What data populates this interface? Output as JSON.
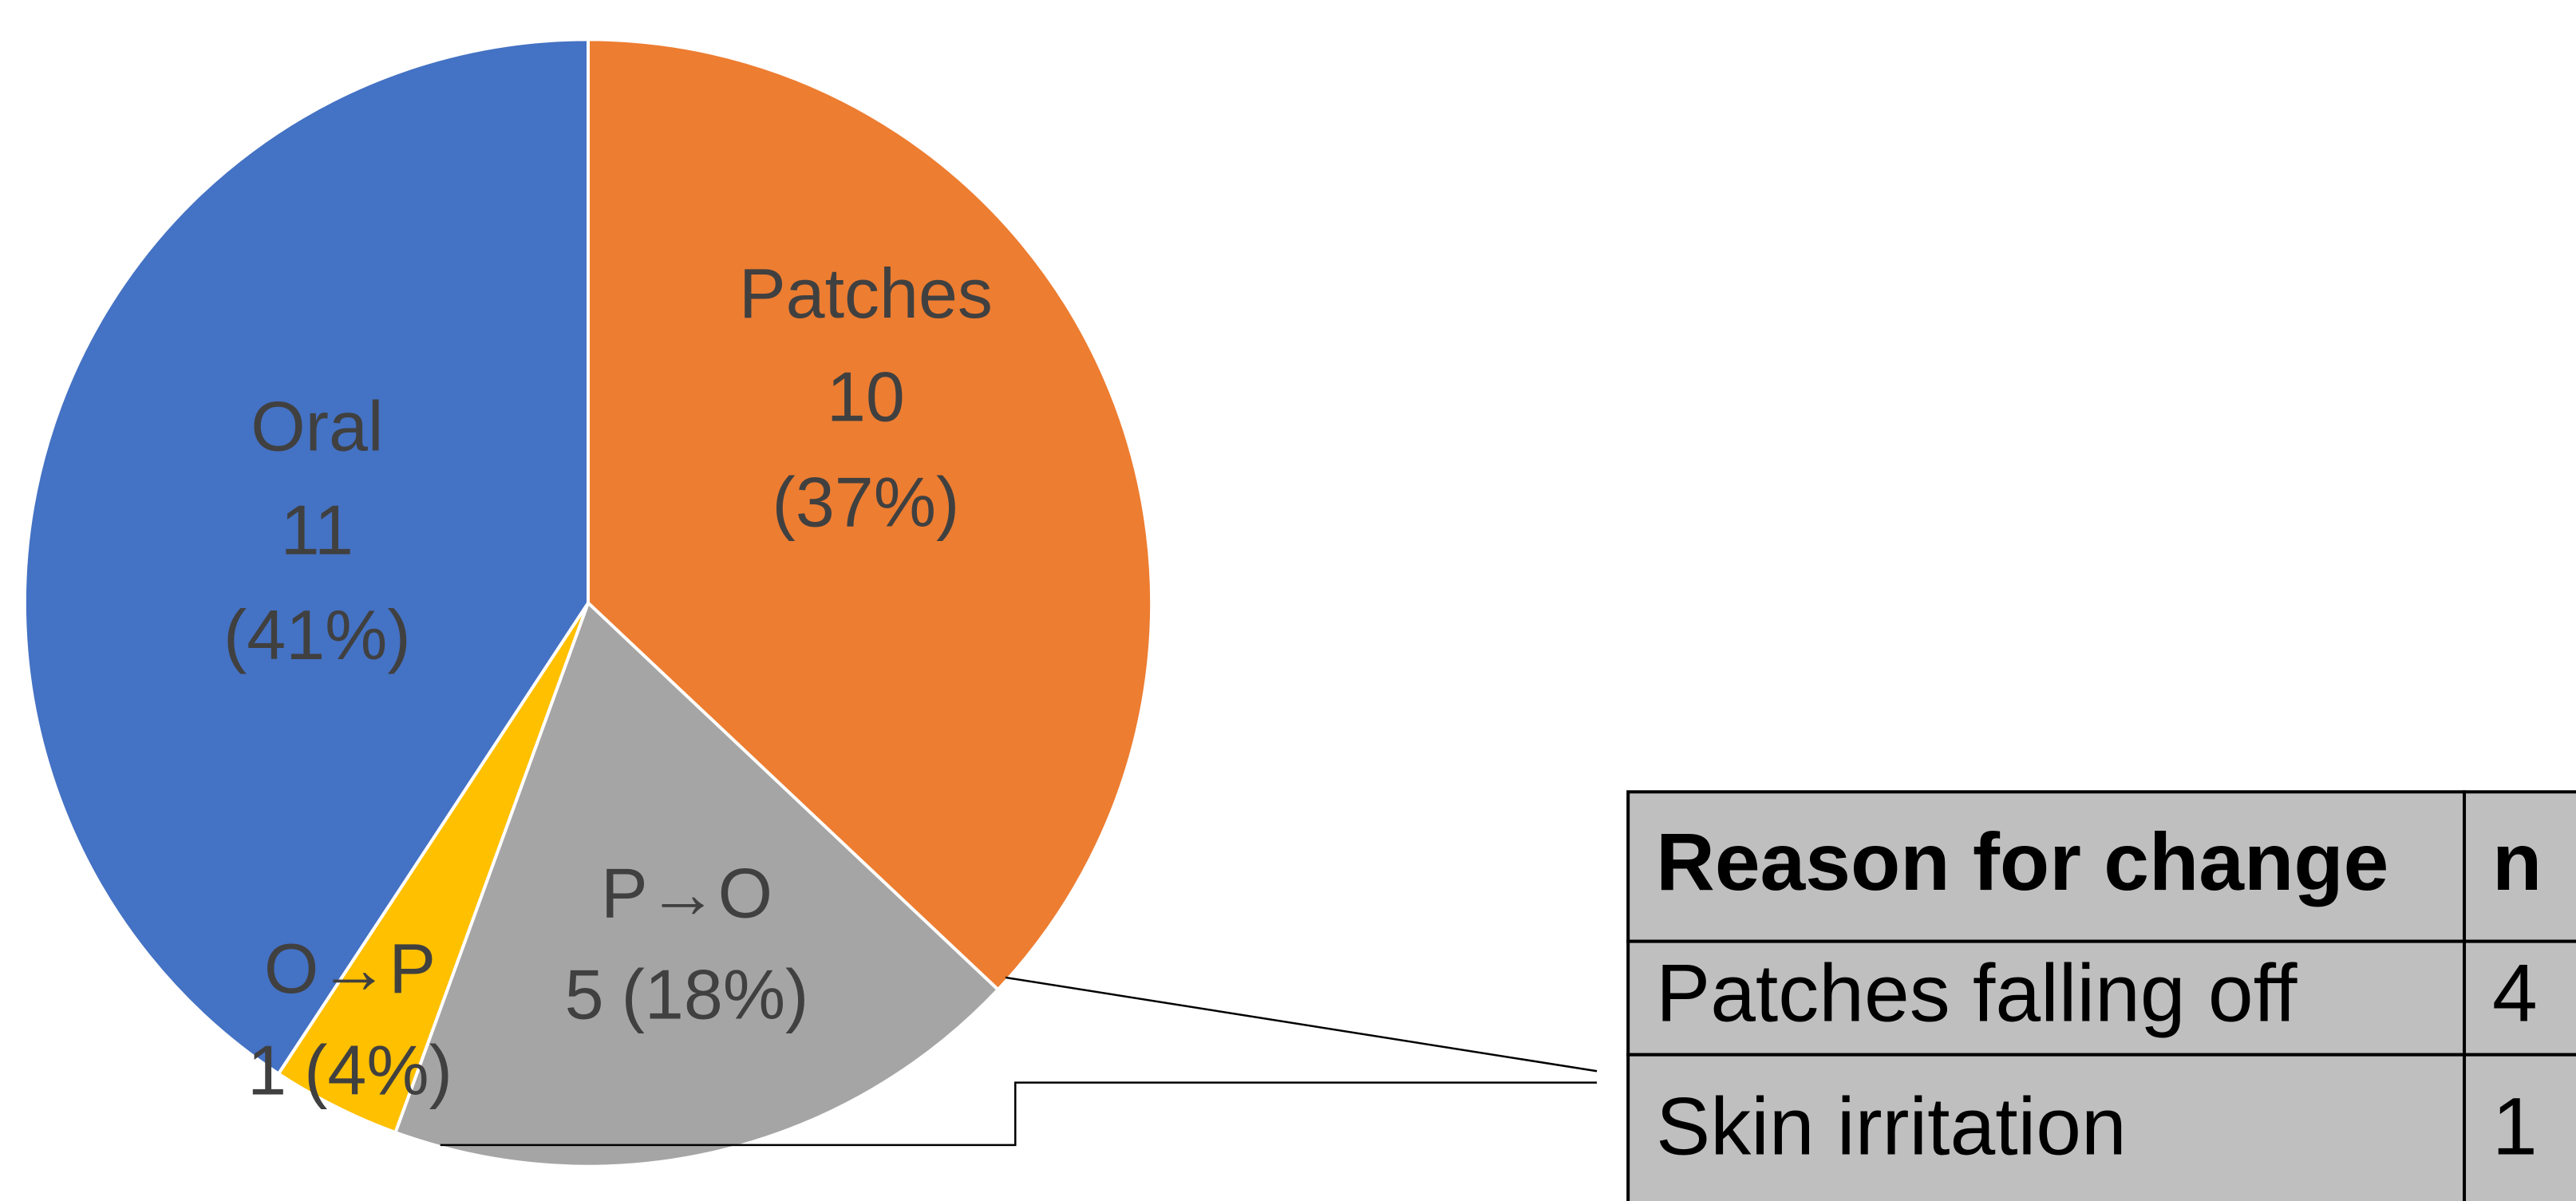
{
  "chart_data": {
    "type": "pie",
    "categories": [
      "Patches",
      "P→O",
      "O→P",
      "Oral"
    ],
    "values": [
      10,
      5,
      1,
      11
    ],
    "percent_labels": [
      "(37%)",
      "(18%)",
      "(4%)",
      "(41%)"
    ],
    "colors": [
      "#ed7d31",
      "#a5a5a5",
      "#ffc000",
      "#4472c4"
    ]
  },
  "table": {
    "headers": [
      "Reason for change",
      "n"
    ],
    "rows": [
      [
        "Patches falling off",
        "4"
      ],
      [
        "Skin irritation",
        "1"
      ]
    ]
  }
}
